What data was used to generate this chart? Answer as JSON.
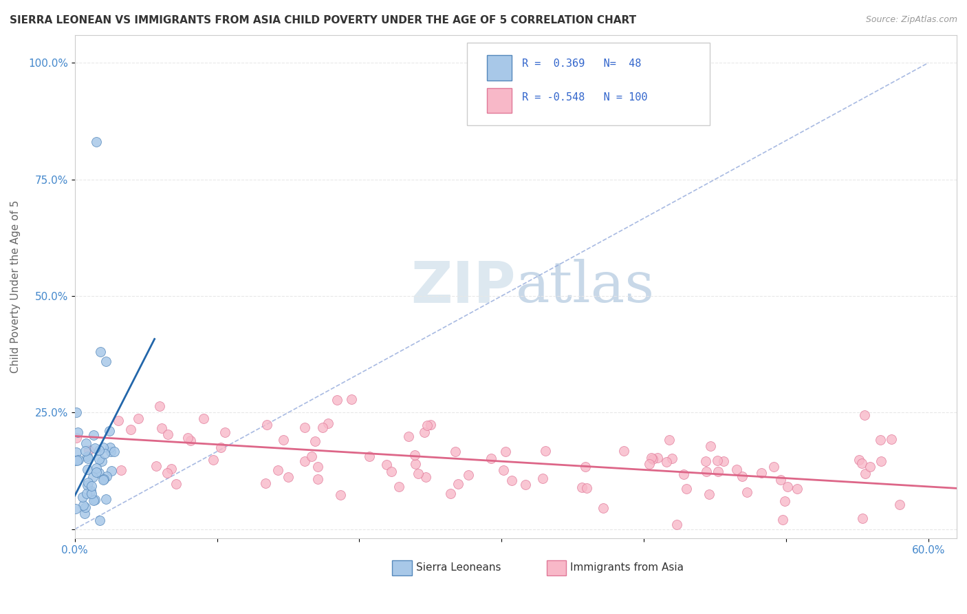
{
  "title": "SIERRA LEONEAN VS IMMIGRANTS FROM ASIA CHILD POVERTY UNDER THE AGE OF 5 CORRELATION CHART",
  "source": "Source: ZipAtlas.com",
  "ylabel": "Child Poverty Under the Age of 5",
  "legend_label1": "Sierra Leoneans",
  "legend_label2": "Immigrants from Asia",
  "xlim": [
    0.0,
    0.62
  ],
  "ylim": [
    -0.02,
    1.06
  ],
  "blue_scatter_fill": "#a8c8e8",
  "blue_scatter_edge": "#5588bb",
  "pink_scatter_fill": "#f8b8c8",
  "pink_scatter_edge": "#e07898",
  "trend_blue_color": "#2266aa",
  "trend_pink_color": "#dd6688",
  "dash_color": "#99aedd",
  "background_color": "#ffffff",
  "grid_color": "#e8e8e8",
  "title_color": "#333333",
  "source_color": "#999999",
  "tick_color": "#4488cc",
  "ylabel_color": "#666666",
  "legend_text_color": "#3366cc",
  "watermark_color": "#dde8f0"
}
